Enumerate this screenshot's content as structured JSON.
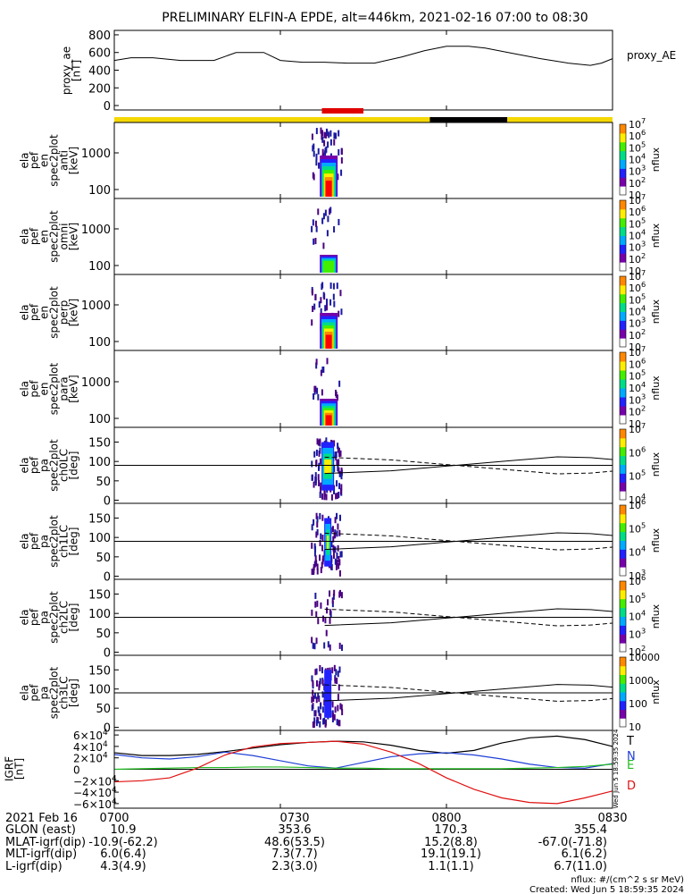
{
  "title": "PRELIMINARY ELFIN-A EPDE, alt=446km, 2021-02-16 07:00 to 08:30",
  "colors": {
    "bar_yellow": "#f5d800",
    "bar_red": "#e00000",
    "bar_black": "#000000",
    "total": "#000000",
    "north": "#1f3fd6",
    "east": "#22bb22",
    "down": "#e01010"
  },
  "time_bar": {
    "segments": [
      {
        "color": "yellow",
        "start": 0,
        "end": 57
      },
      {
        "color": "black",
        "start": 57,
        "end": 71
      },
      {
        "color": "yellow",
        "start": 71,
        "end": 90
      }
    ],
    "science_zone": {
      "color": "red",
      "start": 37.5,
      "end": 45
    }
  },
  "footer": {
    "row_labels": [
      "2021 Feb 16",
      "GLON (east)",
      "MLAT-igrf(dip)",
      "MLT-igrf(dip)",
      "L-igrf(dip)"
    ],
    "tick_labels": [
      "0700",
      "0730",
      "0800",
      "0830"
    ],
    "glon": [
      "10.9",
      "353.6",
      "170.3",
      "355.4"
    ],
    "mlat": [
      "-10.9(-62.2)",
      "48.6(53.5)",
      "15.2(8.8)",
      "-67.0(-71.8)"
    ],
    "mlt": [
      "6.0(6.4)",
      "7.3(7.7)",
      "19.1(19.1)",
      "6.1(6.2)"
    ],
    "lshell": [
      "4.3(4.9)",
      "2.3(3.0)",
      "1.1(1.1)",
      "6.7(11.0)"
    ],
    "units_note": "nflux: #/(cm^2 s sr MeV)",
    "created": "Created: Wed Jun  5 18:59:35 2024",
    "side_stamp": "Wed Jun  5 18:59:35 2024"
  },
  "chart_data": [
    {
      "type": "line",
      "panel": "proxy_ae",
      "ylabel": [
        "proxy_ae",
        "[nT]"
      ],
      "legend": "proxy_AE",
      "ylim": [
        -50,
        850
      ],
      "yticks": [
        0,
        200,
        400,
        600,
        800
      ],
      "x_minutes": [
        0,
        3,
        7,
        12,
        18,
        22,
        27,
        30,
        34,
        38,
        42,
        47,
        52,
        56,
        60,
        64,
        67,
        72,
        77,
        82,
        86,
        88,
        90
      ],
      "values": [
        510,
        540,
        540,
        510,
        510,
        600,
        600,
        510,
        490,
        490,
        480,
        480,
        550,
        620,
        670,
        670,
        650,
        590,
        530,
        480,
        455,
        480,
        530
      ]
    },
    {
      "type": "heatmap",
      "panel": "spec_anti",
      "ylabel": [
        "ela",
        "pef",
        "en",
        "spec2plot",
        "anti",
        "[keV]"
      ],
      "yscale": "log",
      "yticks": [
        "100",
        "1000"
      ],
      "zlabel": "nflux",
      "zticks": [
        "10",
        "10^2",
        "10^3",
        "10^4",
        "10^5",
        "10^6",
        "10^7"
      ],
      "time_range_minutes": [
        35.5,
        41
      ]
    },
    {
      "type": "heatmap",
      "panel": "spec_omni",
      "ylabel": [
        "ela",
        "pef",
        "en",
        "spec2plot",
        "omni",
        "[keV]"
      ],
      "yscale": "log",
      "yticks": [
        "100",
        "1000"
      ],
      "zlabel": "nflux",
      "zticks": [
        "10",
        "10^2",
        "10^3",
        "10^4",
        "10^5",
        "10^6",
        "10^7"
      ],
      "time_range_minutes": [
        35.5,
        41
      ]
    },
    {
      "type": "heatmap",
      "panel": "spec_perp",
      "ylabel": [
        "ela",
        "pef",
        "en",
        "spec2plot",
        "perp",
        "[keV]"
      ],
      "yscale": "log",
      "yticks": [
        "100",
        "1000"
      ],
      "zlabel": "nflux",
      "zticks": [
        "10",
        "10^2",
        "10^3",
        "10^4",
        "10^5",
        "10^6",
        "10^7"
      ],
      "time_range_minutes": [
        35.5,
        41
      ]
    },
    {
      "type": "heatmap",
      "panel": "spec_para",
      "ylabel": [
        "ela",
        "pef",
        "en",
        "spec2plot",
        "para",
        "[keV]"
      ],
      "yscale": "log",
      "yticks": [
        "100",
        "1000"
      ],
      "zlabel": "nflux",
      "zticks": [
        "10",
        "10^2",
        "10^3",
        "10^4",
        "10^5",
        "10^6",
        "10^7"
      ],
      "time_range_minutes": [
        35.5,
        41
      ]
    },
    {
      "type": "heatmap",
      "panel": "pa_ch0",
      "ylabel": [
        "ela",
        "pef",
        "pa",
        "spec2plot",
        "ch0LC",
        "[deg]"
      ],
      "ylim": [
        -8,
        188
      ],
      "yticks": [
        0,
        50,
        100,
        150
      ],
      "zlabel": "nflux",
      "zticks": [
        "10^4",
        "10^5",
        "10^6",
        "10^7"
      ],
      "time_range_minutes": [
        35.5,
        41
      ],
      "horizontal_line": 90,
      "loss_cone_x": [
        38,
        50,
        60,
        70,
        80,
        86,
        90
      ],
      "loss_cone": [
        69,
        76,
        88,
        100,
        112,
        110,
        105
      ],
      "antiloss_cone": [
        111,
        104,
        92,
        80,
        68,
        70,
        75
      ]
    },
    {
      "type": "heatmap",
      "panel": "pa_ch1",
      "ylabel": [
        "ela",
        "pef",
        "pa",
        "spec2plot",
        "ch1LC",
        "[deg]"
      ],
      "ylim": [
        -8,
        188
      ],
      "yticks": [
        0,
        50,
        100,
        150
      ],
      "zlabel": "nflux",
      "zticks": [
        "10^3",
        "10^4",
        "10^5",
        "10^6"
      ],
      "time_range_minutes": [
        35.5,
        41
      ],
      "horizontal_line": 90,
      "loss_cone_x": [
        38,
        50,
        60,
        70,
        80,
        86,
        90
      ],
      "loss_cone": [
        69,
        76,
        88,
        100,
        112,
        110,
        105
      ],
      "antiloss_cone": [
        111,
        104,
        92,
        80,
        68,
        70,
        75
      ]
    },
    {
      "type": "heatmap",
      "panel": "pa_ch2",
      "ylabel": [
        "ela",
        "pef",
        "pa",
        "spec2plot",
        "ch2LC",
        "[deg]"
      ],
      "ylim": [
        -8,
        188
      ],
      "yticks": [
        0,
        50,
        100,
        150
      ],
      "zlabel": "nflux",
      "zticks": [
        "10^2",
        "10^3",
        "10^4",
        "10^5",
        "10^6"
      ],
      "time_range_minutes": [
        35.5,
        41
      ],
      "horizontal_line": 90,
      "loss_cone_x": [
        38,
        50,
        60,
        70,
        80,
        86,
        90
      ],
      "loss_cone": [
        69,
        76,
        88,
        100,
        112,
        110,
        105
      ],
      "antiloss_cone": [
        111,
        104,
        92,
        80,
        68,
        70,
        75
      ]
    },
    {
      "type": "heatmap",
      "panel": "pa_ch3",
      "ylabel": [
        "ela",
        "pef",
        "pa",
        "spec2plot",
        "ch3LC",
        "[deg]"
      ],
      "ylim": [
        -8,
        188
      ],
      "yticks": [
        0,
        50,
        100,
        150
      ],
      "zlabel": "nflux",
      "zticks": [
        "10",
        "100",
        "1000",
        "10000"
      ],
      "time_range_minutes": [
        35.5,
        41
      ],
      "horizontal_line": 90,
      "loss_cone_x": [
        38,
        50,
        60,
        70,
        80,
        86,
        90
      ],
      "loss_cone": [
        69,
        76,
        88,
        100,
        112,
        110,
        105
      ],
      "antiloss_cone": [
        111,
        104,
        92,
        80,
        68,
        70,
        75
      ]
    },
    {
      "type": "line",
      "panel": "igrf",
      "ylabel": [
        "IGRF",
        "[nT]"
      ],
      "ylim": [
        -68000,
        68000
      ],
      "yticks": [
        "6×10^4",
        "4×10^4",
        "2×10^4",
        "0",
        "−2×10^4",
        "−4×10^4",
        "−6×10^4"
      ],
      "x_minutes": [
        0,
        5,
        10,
        15,
        20,
        25,
        30,
        35,
        40,
        45,
        50,
        55,
        60,
        65,
        70,
        75,
        80,
        85,
        90
      ],
      "series": [
        {
          "name": "T",
          "values": [
            29000,
            24000,
            24000,
            26000,
            31000,
            37000,
            43000,
            47000,
            49000,
            48000,
            42000,
            33000,
            28000,
            33000,
            46000,
            55000,
            58000,
            52000,
            40000
          ]
        },
        {
          "name": "N",
          "values": [
            26000,
            20000,
            18000,
            22000,
            30000,
            24000,
            15000,
            6000,
            2000,
            12000,
            22000,
            27000,
            29000,
            25000,
            18000,
            9000,
            3000,
            2000,
            10000
          ]
        },
        {
          "name": "E",
          "values": [
            0,
            1000,
            2000,
            3000,
            3000,
            4000,
            4000,
            3000,
            2000,
            2000,
            1000,
            1000,
            1000,
            1000,
            1000,
            2000,
            3000,
            5000,
            9000
          ]
        },
        {
          "name": "D",
          "values": [
            -22000,
            -20000,
            -15000,
            2000,
            25000,
            39000,
            45000,
            47000,
            49000,
            44000,
            30000,
            10000,
            -15000,
            -35000,
            -50000,
            -58000,
            -60000,
            -50000,
            -38000
          ]
        }
      ]
    }
  ]
}
